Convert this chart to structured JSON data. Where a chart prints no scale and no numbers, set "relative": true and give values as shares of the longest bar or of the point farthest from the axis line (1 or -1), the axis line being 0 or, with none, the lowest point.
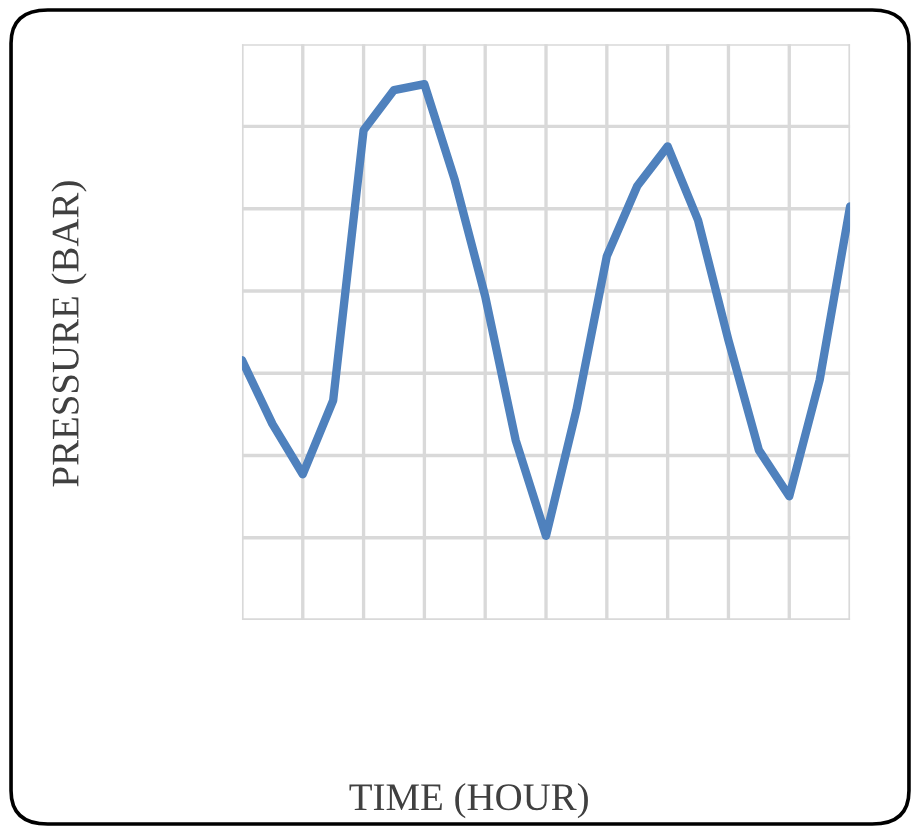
{
  "chart_data": {
    "type": "line",
    "xlabel": "TIME (HOUR)",
    "ylabel": "PRESSURE (BAR)",
    "relative": true,
    "grid": true,
    "legend": false,
    "marker": "none",
    "line_style": "solid",
    "categories": [
      null,
      null,
      null,
      null,
      null,
      null,
      null,
      null,
      null,
      null,
      null,
      null,
      null,
      null,
      null,
      null,
      null,
      null,
      null,
      null,
      null
    ],
    "series": [
      {
        "color": "#4f81bd",
        "values": [
          0.485,
          0.366,
          0.272,
          0.41,
          0.914,
          0.989,
          1.0,
          0.821,
          0.604,
          0.336,
          0.157,
          0.392,
          0.679,
          0.81,
          0.884,
          0.746,
          0.522,
          0.317,
          0.231,
          0.448,
          0.772
        ]
      }
    ]
  }
}
